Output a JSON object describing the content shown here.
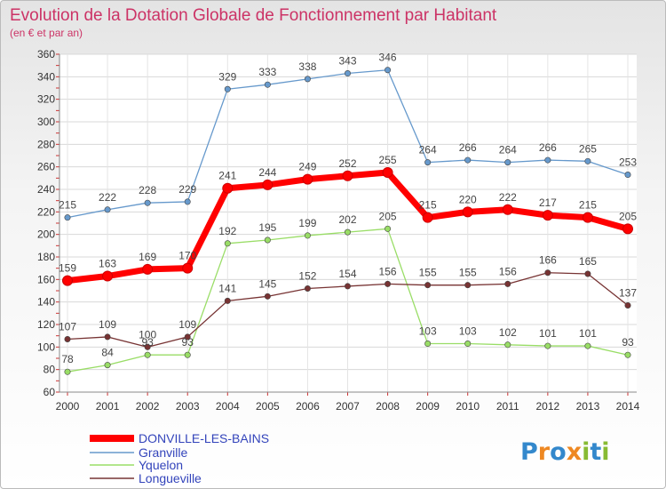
{
  "chart_data": {
    "type": "line",
    "title": "Evolution de la Dotation Globale de Fonctionnement par Habitant",
    "subtitle": "(en € et par an)",
    "x": [
      2000,
      2001,
      2002,
      2003,
      2004,
      2005,
      2006,
      2007,
      2008,
      2009,
      2010,
      2011,
      2012,
      2013,
      2014
    ],
    "ylim": [
      60,
      360
    ],
    "yticks": [
      60,
      80,
      100,
      120,
      140,
      160,
      180,
      200,
      220,
      240,
      260,
      280,
      300,
      320,
      340,
      360
    ],
    "grid": true,
    "legend_position": "bottom-left",
    "series": [
      {
        "name": "DONVILLE-LES-BAINS",
        "color": "#ff0000",
        "values": [
          159,
          163,
          169,
          170,
          241,
          244,
          249,
          252,
          255,
          215,
          220,
          222,
          217,
          215,
          205
        ]
      },
      {
        "name": "Granville",
        "color": "#6699cc",
        "values": [
          215,
          222,
          228,
          229,
          329,
          333,
          338,
          343,
          346,
          264,
          266,
          264,
          266,
          265,
          253
        ]
      },
      {
        "name": "Yquelon",
        "color": "#99dd66",
        "values": [
          78,
          84,
          93,
          93,
          192,
          195,
          199,
          202,
          205,
          103,
          103,
          102,
          101,
          101,
          93
        ]
      },
      {
        "name": "Longueville",
        "color": "#773333",
        "values": [
          107,
          109,
          100,
          109,
          141,
          145,
          152,
          154,
          156,
          155,
          155,
          156,
          166,
          165,
          137
        ]
      }
    ]
  },
  "logo": {
    "text": "Proxiti"
  }
}
